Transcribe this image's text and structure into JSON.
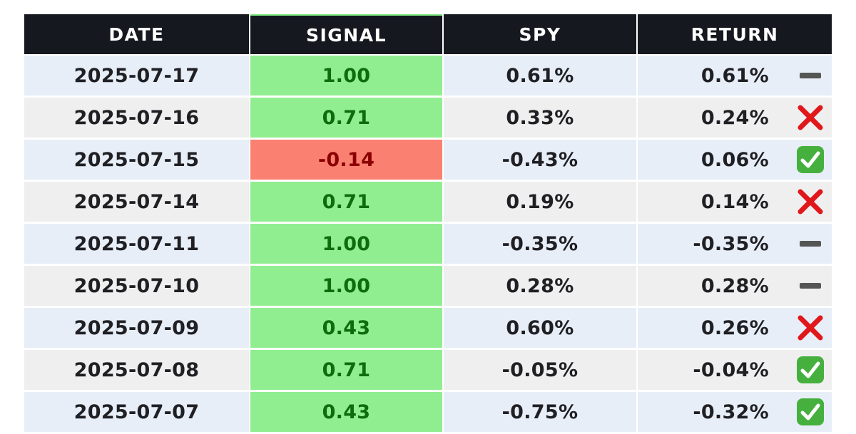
{
  "columns": [
    "DATE",
    "SIGNAL",
    "SPY",
    "RETURN"
  ],
  "colors": {
    "header_bg": "#15191f",
    "signal_positive_bg": "#90ee90",
    "signal_positive_text": "#0f6b0f",
    "signal_negative_bg": "#fa8072",
    "signal_negative_text": "#8b0000",
    "row_alt_a": "#e7eef7",
    "row_alt_b": "#efefef"
  },
  "rows": [
    {
      "date": "2025-07-17",
      "signal": "1.00",
      "spy": "0.61%",
      "return": "0.61%",
      "status": "neutral",
      "status_icon": "dash-icon"
    },
    {
      "date": "2025-07-16",
      "signal": "0.71",
      "spy": "0.33%",
      "return": "0.24%",
      "status": "miss",
      "status_icon": "cross-icon"
    },
    {
      "date": "2025-07-15",
      "signal": "-0.14",
      "spy": "-0.43%",
      "return": "0.06%",
      "status": "hit",
      "status_icon": "check-icon"
    },
    {
      "date": "2025-07-14",
      "signal": "0.71",
      "spy": "0.19%",
      "return": "0.14%",
      "status": "miss",
      "status_icon": "cross-icon"
    },
    {
      "date": "2025-07-11",
      "signal": "1.00",
      "spy": "-0.35%",
      "return": "-0.35%",
      "status": "neutral",
      "status_icon": "dash-icon"
    },
    {
      "date": "2025-07-10",
      "signal": "1.00",
      "spy": "0.28%",
      "return": "0.28%",
      "status": "neutral",
      "status_icon": "dash-icon"
    },
    {
      "date": "2025-07-09",
      "signal": "0.43",
      "spy": "0.60%",
      "return": "0.26%",
      "status": "miss",
      "status_icon": "cross-icon"
    },
    {
      "date": "2025-07-08",
      "signal": "0.71",
      "spy": "-0.05%",
      "return": "-0.04%",
      "status": "hit",
      "status_icon": "check-icon"
    },
    {
      "date": "2025-07-07",
      "signal": "0.43",
      "spy": "-0.75%",
      "return": "-0.32%",
      "status": "hit",
      "status_icon": "check-icon"
    }
  ]
}
